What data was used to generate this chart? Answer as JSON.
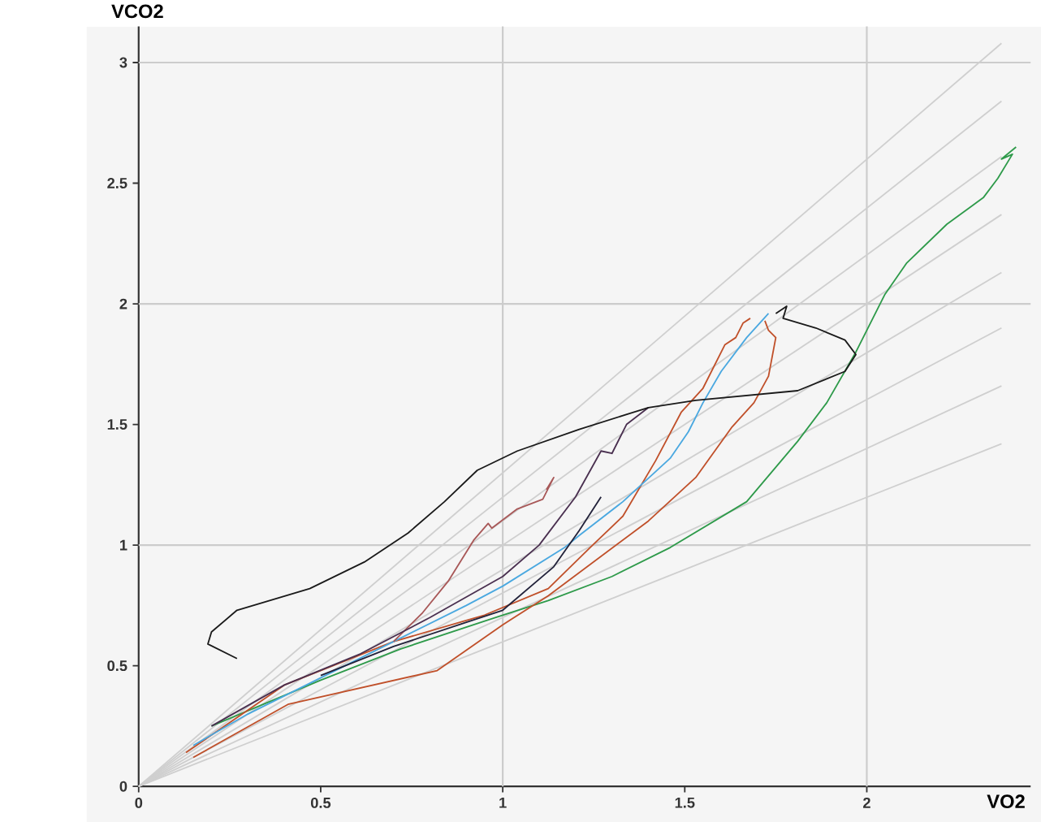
{
  "chart_data": {
    "type": "line",
    "xlabel": "VO2",
    "ylabel": "VCO2",
    "xlim": [
      0,
      2.45
    ],
    "ylim": [
      0,
      3.15
    ],
    "xticks": [
      0,
      0.5,
      1,
      1.5,
      2
    ],
    "yticks": [
      0,
      0.5,
      1,
      1.5,
      2,
      2.5,
      3
    ],
    "ref_lines": [
      {
        "axis": "x",
        "value": 1,
        "color": "#cccccc"
      },
      {
        "axis": "x",
        "value": 2,
        "color": "#cccccc"
      },
      {
        "axis": "y",
        "value": 1,
        "color": "#cccccc"
      },
      {
        "axis": "y",
        "value": 2,
        "color": "#cccccc"
      },
      {
        "axis": "y",
        "value": 3,
        "color": "#cccccc"
      }
    ],
    "series": [
      {
        "color": "#cfcfcf",
        "x": [
          0,
          2.37
        ],
        "values": [
          0,
          1.42
        ]
      },
      {
        "color": "#cfcfcf",
        "x": [
          0,
          2.37
        ],
        "values": [
          0,
          1.66
        ]
      },
      {
        "color": "#cfcfcf",
        "x": [
          0,
          2.37
        ],
        "values": [
          0,
          1.9
        ]
      },
      {
        "color": "#cfcfcf",
        "x": [
          0,
          2.37
        ],
        "values": [
          0,
          2.13
        ]
      },
      {
        "color": "#cfcfcf",
        "x": [
          0,
          2.37
        ],
        "values": [
          0,
          2.37
        ]
      },
      {
        "color": "#cfcfcf",
        "x": [
          0,
          2.37
        ],
        "values": [
          0,
          2.61
        ]
      },
      {
        "color": "#cfcfcf",
        "x": [
          0,
          2.37
        ],
        "values": [
          0,
          2.84
        ]
      },
      {
        "color": "#cfcfcf",
        "x": [
          0,
          2.37
        ],
        "values": [
          0,
          3.08
        ]
      },
      {
        "color": "#2e9a4a",
        "x": [
          0.2,
          0.5,
          0.72,
          1.0,
          1.125,
          1.3,
          1.46,
          1.67,
          1.81,
          1.89,
          1.97,
          2.05,
          2.11,
          2.22,
          2.32,
          2.36,
          2.4,
          2.37,
          2.41
        ],
        "values": [
          0.25,
          0.44,
          0.57,
          0.71,
          0.77,
          0.87,
          0.99,
          1.18,
          1.43,
          1.59,
          1.8,
          2.04,
          2.17,
          2.33,
          2.44,
          2.52,
          2.62,
          2.6,
          2.65
        ]
      },
      {
        "color": "#c0502a",
        "x": [
          0.13,
          0.4,
          0.7,
          0.95,
          1.125,
          1.24,
          1.33,
          1.42,
          1.49,
          1.55,
          1.61,
          1.64,
          1.66,
          1.68
        ],
        "values": [
          0.14,
          0.42,
          0.6,
          0.71,
          0.82,
          0.99,
          1.12,
          1.35,
          1.55,
          1.65,
          1.83,
          1.86,
          1.92,
          1.94
        ]
      },
      {
        "color": "#c0502a",
        "x": [
          0.15,
          0.41,
          0.82,
          1.0,
          1.125,
          1.4,
          1.53,
          1.63,
          1.69,
          1.73,
          1.75,
          1.73,
          1.72
        ],
        "values": [
          0.12,
          0.34,
          0.48,
          0.67,
          0.79,
          1.1,
          1.28,
          1.49,
          1.59,
          1.7,
          1.86,
          1.89,
          1.93
        ]
      },
      {
        "color": "#4aa8e0",
        "x": [
          0.15,
          0.3,
          0.5,
          0.7,
          0.9,
          1.0,
          1.17,
          1.21,
          1.33,
          1.46,
          1.51,
          1.55,
          1.6,
          1.67,
          1.73
        ],
        "values": [
          0.17,
          0.3,
          0.45,
          0.6,
          0.75,
          0.83,
          0.99,
          1.04,
          1.18,
          1.36,
          1.47,
          1.59,
          1.72,
          1.86,
          1.96
        ]
      },
      {
        "color": "#a85858",
        "x": [
          0.7,
          0.78,
          0.85,
          0.92,
          0.96,
          0.97,
          1.04,
          1.11,
          1.14,
          1.12
        ],
        "values": [
          0.6,
          0.72,
          0.85,
          1.02,
          1.09,
          1.07,
          1.15,
          1.19,
          1.28,
          1.23
        ]
      },
      {
        "color": "#4a3050",
        "x": [
          0.2,
          0.4,
          0.61,
          0.8,
          1.0,
          1.1,
          1.2,
          1.27,
          1.3,
          1.34,
          1.4
        ],
        "values": [
          0.25,
          0.42,
          0.55,
          0.7,
          0.87,
          1.0,
          1.2,
          1.39,
          1.38,
          1.5,
          1.57
        ]
      },
      {
        "color": "#22223a",
        "x": [
          0.5,
          0.7,
          0.9,
          1.0,
          1.14,
          1.21,
          1.27
        ],
        "values": [
          0.46,
          0.58,
          0.68,
          0.73,
          0.91,
          1.06,
          1.2
        ]
      },
      {
        "color": "#1a1a1a",
        "x": [
          0.27,
          0.19,
          0.2,
          0.27,
          0.47,
          0.62,
          0.74,
          0.84,
          0.93,
          1.04,
          1.21,
          1.4,
          1.53,
          1.81,
          1.94,
          1.97,
          1.94,
          1.86,
          1.77,
          1.78,
          1.75
        ],
        "values": [
          0.53,
          0.59,
          0.64,
          0.73,
          0.82,
          0.93,
          1.05,
          1.18,
          1.31,
          1.39,
          1.48,
          1.57,
          1.6,
          1.64,
          1.72,
          1.79,
          1.85,
          1.9,
          1.94,
          1.99,
          1.96
        ]
      }
    ]
  }
}
